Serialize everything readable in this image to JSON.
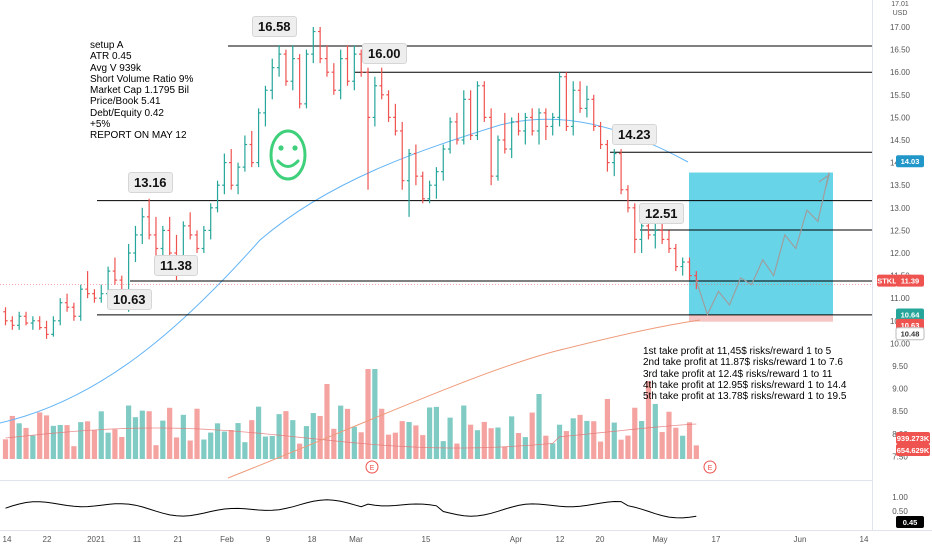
{
  "chart_data": {
    "type": "candlestick",
    "symbol": "STKL",
    "currency": "USD",
    "y_ticks": [
      "17.00",
      "16.50",
      "16.00",
      "15.50",
      "15.00",
      "14.50",
      "14.00",
      "13.50",
      "13.00",
      "12.50",
      "12.00",
      "11.50",
      "11.00",
      "10.50",
      "10.00",
      "9.50",
      "9.00",
      "8.50",
      "8.00",
      "7.50"
    ],
    "y_top_label": "17.01",
    "x_ticks": [
      "14",
      "22",
      "2021",
      "11",
      "21",
      "Feb",
      "9",
      "18",
      "Mar",
      "15",
      "Apr",
      "12",
      "20",
      "May",
      "17",
      "Jun",
      "14"
    ],
    "ylim": [
      7.4,
      17.1
    ],
    "levels": [
      {
        "label": "16.58",
        "value": 16.58
      },
      {
        "label": "16.00",
        "value": 16.0
      },
      {
        "label": "14.23",
        "value": 14.23
      },
      {
        "label": "13.16",
        "value": 13.16
      },
      {
        "label": "12.51",
        "value": 12.51
      },
      {
        "label": "11.38",
        "value": 11.38
      },
      {
        "label": "10.63",
        "value": 10.63
      }
    ],
    "hlines": [
      16.58,
      16.0,
      14.23,
      13.16,
      12.51,
      11.38,
      10.63
    ],
    "price_badges": [
      {
        "text": "14.03",
        "color": "#2196c9"
      },
      {
        "text": "STKL",
        "color": "#ef5350"
      },
      {
        "text": "11.39",
        "color": "#ef5350"
      },
      {
        "text": "10.64",
        "color": "#26a69a"
      },
      {
        "text": "10.63",
        "color": "#ef5350"
      },
      {
        "text": "10.48",
        "color": "#ffffff"
      },
      {
        "text": "939.273K",
        "color": "#ef5350"
      },
      {
        "text": "654.629K",
        "color": "#ef5350"
      },
      {
        "text": "0.45",
        "color": "#000000"
      }
    ],
    "oscillator_ticks": [
      "1.00",
      "0.50"
    ],
    "take_profit_box": {
      "low": 10.63,
      "high": 13.78,
      "stop": 10.48
    },
    "ohlc": [
      [
        10.7,
        10.8,
        10.4,
        10.5
      ],
      [
        10.5,
        10.6,
        10.3,
        10.4
      ],
      [
        10.4,
        10.7,
        10.3,
        10.6
      ],
      [
        10.6,
        10.7,
        10.4,
        10.45
      ],
      [
        10.45,
        10.6,
        10.3,
        10.5
      ],
      [
        10.5,
        10.6,
        10.3,
        10.35
      ],
      [
        10.35,
        10.5,
        10.1,
        10.2
      ],
      [
        10.2,
        10.6,
        10.15,
        10.5
      ],
      [
        10.5,
        11.0,
        10.4,
        10.9
      ],
      [
        10.9,
        11.1,
        10.7,
        10.8
      ],
      [
        10.8,
        10.9,
        10.5,
        10.6
      ],
      [
        10.6,
        11.3,
        10.5,
        11.2
      ],
      [
        11.2,
        11.6,
        11.0,
        11.1
      ],
      [
        11.1,
        11.2,
        10.9,
        11.0
      ],
      [
        11.0,
        11.3,
        10.9,
        11.1
      ],
      [
        11.1,
        11.7,
        11.0,
        11.6
      ],
      [
        11.6,
        11.9,
        11.3,
        11.4
      ],
      [
        11.4,
        11.5,
        11.0,
        11.1
      ],
      [
        11.1,
        12.2,
        10.7,
        12.0
      ],
      [
        12.0,
        12.6,
        11.8,
        12.4
      ],
      [
        12.4,
        13.0,
        12.2,
        12.8
      ],
      [
        12.8,
        13.2,
        12.3,
        12.4
      ],
      [
        12.4,
        12.8,
        11.9,
        12.1
      ],
      [
        12.1,
        12.6,
        11.8,
        12.5
      ],
      [
        12.5,
        12.8,
        11.9,
        12.0
      ],
      [
        12.0,
        12.4,
        11.4,
        11.6
      ],
      [
        11.6,
        12.7,
        11.5,
        12.6
      ],
      [
        12.6,
        12.9,
        12.3,
        12.4
      ],
      [
        12.4,
        12.5,
        12.0,
        12.1
      ],
      [
        12.1,
        12.6,
        12.0,
        12.5
      ],
      [
        12.5,
        13.1,
        12.3,
        13.0
      ],
      [
        13.0,
        13.6,
        12.9,
        13.5
      ],
      [
        13.5,
        14.2,
        13.3,
        14.0
      ],
      [
        14.0,
        14.3,
        13.4,
        13.5
      ],
      [
        13.5,
        14.0,
        13.3,
        13.9
      ],
      [
        13.9,
        14.6,
        13.8,
        14.4
      ],
      [
        14.4,
        14.7,
        13.9,
        14.0
      ],
      [
        14.0,
        15.2,
        13.9,
        15.1
      ],
      [
        15.1,
        15.7,
        14.8,
        15.6
      ],
      [
        15.6,
        16.3,
        15.4,
        16.1
      ],
      [
        16.1,
        16.6,
        15.9,
        16.4
      ],
      [
        16.4,
        16.5,
        15.7,
        15.8
      ],
      [
        15.8,
        16.6,
        15.6,
        16.3
      ],
      [
        16.3,
        16.4,
        15.2,
        15.3
      ],
      [
        15.3,
        16.5,
        15.2,
        16.4
      ],
      [
        16.4,
        17.0,
        16.2,
        16.9
      ],
      [
        16.9,
        17.0,
        16.2,
        16.3
      ],
      [
        16.3,
        16.6,
        15.9,
        16.0
      ],
      [
        16.0,
        16.2,
        15.5,
        15.6
      ],
      [
        15.6,
        16.5,
        15.4,
        16.3
      ],
      [
        16.3,
        16.6,
        15.7,
        15.8
      ],
      [
        15.8,
        16.6,
        15.6,
        16.4
      ],
      [
        16.4,
        16.5,
        15.9,
        16.0
      ],
      [
        16.0,
        16.1,
        13.4,
        15.0
      ],
      [
        15.0,
        15.9,
        14.8,
        15.7
      ],
      [
        15.7,
        16.1,
        15.4,
        15.5
      ],
      [
        15.5,
        15.6,
        14.9,
        15.0
      ],
      [
        15.0,
        15.3,
        14.6,
        14.7
      ],
      [
        14.7,
        14.9,
        13.4,
        13.6
      ],
      [
        13.6,
        14.3,
        12.8,
        14.2
      ],
      [
        14.2,
        14.4,
        13.5,
        13.7
      ],
      [
        13.7,
        13.8,
        13.1,
        13.2
      ],
      [
        13.2,
        13.6,
        13.1,
        13.5
      ],
      [
        13.5,
        13.9,
        13.2,
        13.8
      ],
      [
        13.8,
        14.4,
        13.6,
        14.3
      ],
      [
        14.3,
        15.0,
        14.2,
        14.9
      ],
      [
        14.9,
        15.1,
        14.4,
        14.5
      ],
      [
        14.5,
        15.6,
        14.4,
        15.4
      ],
      [
        15.4,
        15.6,
        14.5,
        14.6
      ],
      [
        14.6,
        15.8,
        14.5,
        15.7
      ],
      [
        15.7,
        15.8,
        14.9,
        15.0
      ],
      [
        15.0,
        15.2,
        13.5,
        13.7
      ],
      [
        13.7,
        14.6,
        13.6,
        14.5
      ],
      [
        14.5,
        15.1,
        14.2,
        14.3
      ],
      [
        14.3,
        15.0,
        14.1,
        14.9
      ],
      [
        14.9,
        15.1,
        14.6,
        14.7
      ],
      [
        14.7,
        15.1,
        14.4,
        15.0
      ],
      [
        15.0,
        15.2,
        14.6,
        14.7
      ],
      [
        14.7,
        15.2,
        14.4,
        15.1
      ],
      [
        15.1,
        15.2,
        14.5,
        14.8
      ],
      [
        14.8,
        15.1,
        14.6,
        15.0
      ],
      [
        15.0,
        16.0,
        14.8,
        15.9
      ],
      [
        15.9,
        16.0,
        14.7,
        14.8
      ],
      [
        14.8,
        15.8,
        14.6,
        15.6
      ],
      [
        15.6,
        15.8,
        15.1,
        15.2
      ],
      [
        15.2,
        15.7,
        15.0,
        15.4
      ],
      [
        15.4,
        15.5,
        14.7,
        14.8
      ],
      [
        14.8,
        14.9,
        14.3,
        14.4
      ],
      [
        14.4,
        14.5,
        13.8,
        14.0
      ],
      [
        14.0,
        14.3,
        13.7,
        14.2
      ],
      [
        14.2,
        14.3,
        13.3,
        13.4
      ],
      [
        13.4,
        13.5,
        12.9,
        13.0
      ],
      [
        13.0,
        13.1,
        12.0,
        12.3
      ],
      [
        12.3,
        12.7,
        12.0,
        12.6
      ],
      [
        12.6,
        12.8,
        12.3,
        12.4
      ],
      [
        12.4,
        12.8,
        12.1,
        12.5
      ],
      [
        12.5,
        12.7,
        12.2,
        12.3
      ],
      [
        12.3,
        12.5,
        12.0,
        12.1
      ],
      [
        12.1,
        12.2,
        11.6,
        11.7
      ],
      [
        11.7,
        11.9,
        11.5,
        11.8
      ],
      [
        11.8,
        11.9,
        11.4,
        11.5
      ],
      [
        11.5,
        11.6,
        11.2,
        11.39
      ]
    ],
    "projection": [
      11.39,
      10.64,
      11.15,
      10.85,
      11.45,
      11.3,
      11.85,
      11.5,
      12.4,
      12.1,
      12.95,
      12.7,
      13.78
    ]
  },
  "notes": {
    "lines": [
      "setup A",
      "ATR 0.45",
      "Avg V 939k",
      "Short Volume Ratio 9%",
      "Market Cap 1.1795 Bil",
      "Price/Book 5.41",
      "Debt/Equity 0.42",
      "+5%",
      "REPORT ON MAY 12"
    ]
  },
  "take_profit_text": {
    "lines": [
      "1st take profit at 11,45$ risks/reward 1 to 5",
      "2nd take profit at 11.87$ risks/reward 1 to 7.6",
      "3rd take profit at 12.4$ risks/reward 1 to 11",
      "4th take profit at 12.95$ risks/reward 1 to 14.4",
      "5th take profit at 13.78$ risks/reward 1 to 19.5"
    ]
  },
  "earnings_markers": [
    "E",
    "E",
    "E"
  ],
  "colors": {
    "up": "#26a69a",
    "down": "#ef5350",
    "ma_short": "#64b5f6",
    "ma_long": "#ef9a7a",
    "tp_box": "#58cfe6",
    "stop_box": "#f5c6c6",
    "smiley": "#3ed07a"
  }
}
